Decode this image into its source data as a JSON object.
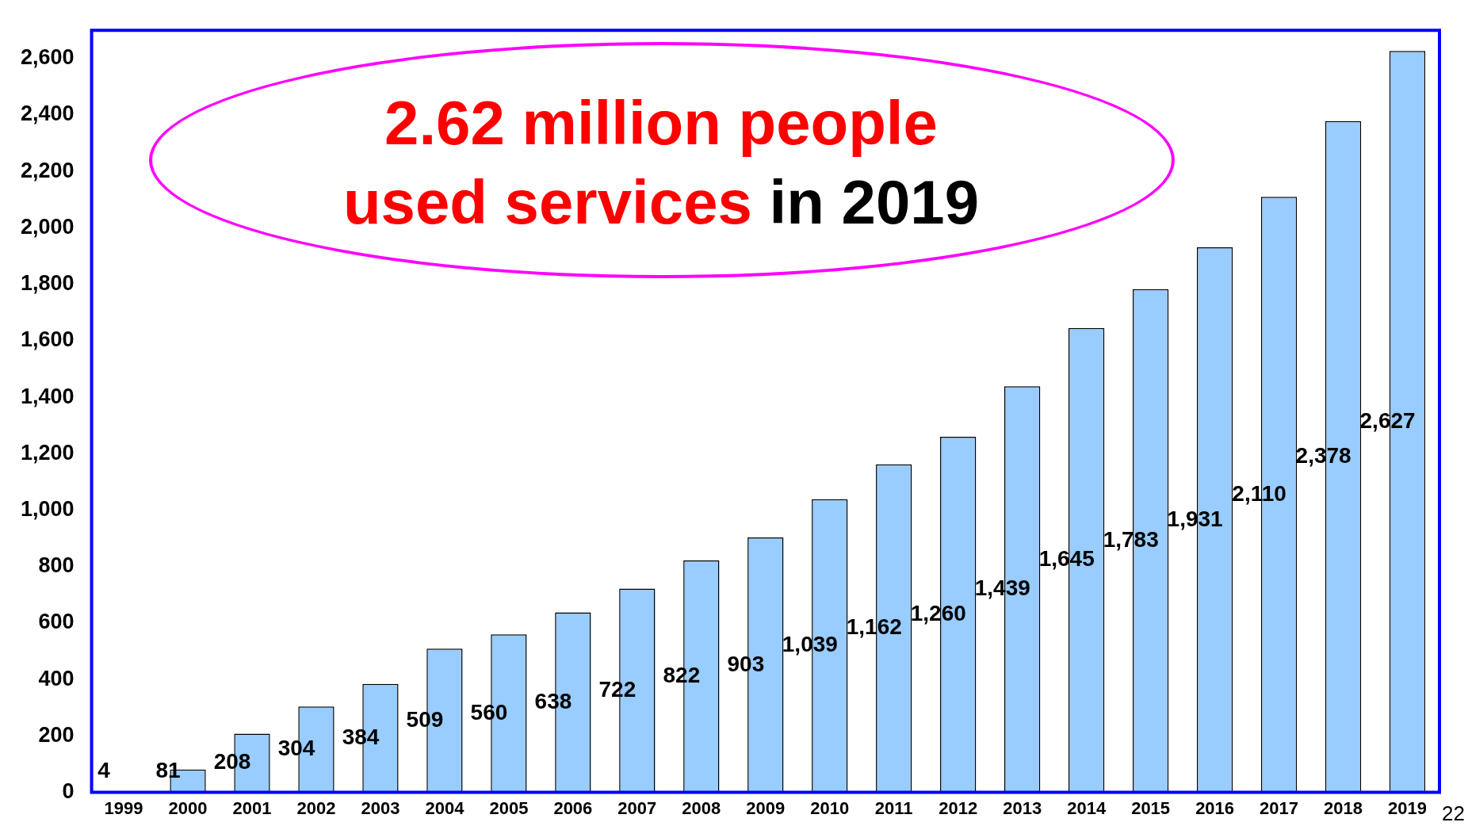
{
  "chart_data": {
    "type": "bar",
    "categories": [
      "1999",
      "2000",
      "2001",
      "2002",
      "2003",
      "2004",
      "2005",
      "2006",
      "2007",
      "2008",
      "2009",
      "2010",
      "2011",
      "2012",
      "2013",
      "2014",
      "2015",
      "2016",
      "2017",
      "2018",
      "2019"
    ],
    "values": [
      4,
      81,
      208,
      304,
      384,
      509,
      560,
      638,
      722,
      822,
      903,
      1039,
      1162,
      1260,
      1439,
      1645,
      1783,
      1931,
      2110,
      2378,
      2627
    ],
    "value_labels": [
      "4",
      "81",
      "208",
      "304",
      "384",
      "509",
      "560",
      "638",
      "722",
      "822",
      "903",
      "1,039",
      "1,162",
      "1,260",
      "1,439",
      "1,645",
      "1,783",
      "1,931",
      "2,110",
      "2,378",
      "2,627"
    ],
    "color": "#99ccff",
    "ylim": [
      0,
      2700
    ],
    "yticks": [
      0,
      200,
      400,
      600,
      800,
      {
        "value": 1000,
        "label": "1,000"
      },
      {
        "value": 1200,
        "label": "1,200"
      },
      {
        "value": 1400,
        "label": "1,400"
      },
      {
        "value": 1600,
        "label": "1,600"
      },
      {
        "value": 1800,
        "label": "1,800"
      },
      {
        "value": 2000,
        "label": "2,000"
      },
      {
        "value": 2200,
        "label": "2,200"
      },
      {
        "value": 2400,
        "label": "2,400"
      },
      {
        "value": 2600,
        "label": "2,600"
      }
    ],
    "grid": false,
    "legend": false,
    "annotations": [
      "2.62 million people used services",
      "in 2019",
      "22"
    ]
  }
}
